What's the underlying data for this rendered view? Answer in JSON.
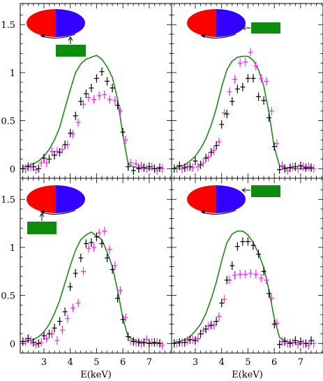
{
  "chart_data": {
    "type": "line",
    "x_axis_label": "E(keV)",
    "xlim": [
      2.1,
      7.85
    ],
    "ylim": [
      -0.1,
      1.72
    ],
    "x_ticks": [
      "3",
      "4",
      "5",
      "6",
      "7"
    ],
    "y_ticks": [
      "0",
      "0.5",
      "1",
      "1.5"
    ],
    "colors": {
      "model": "#1a8a1a",
      "black_series": "#000000",
      "magenta_series": "#ff1fff",
      "disk_red": "#ff0000",
      "disk_blue": "#3300ff",
      "block_green": "#0d8c0d"
    },
    "panels": [
      {
        "model_y": [
          0.02,
          0.03,
          0.05,
          0.08,
          0.13,
          0.2,
          0.3,
          0.43,
          0.63,
          0.82,
          1.0,
          1.09,
          1.14,
          1.16,
          1.18,
          1.14,
          1.06,
          0.95,
          0.72,
          0.35,
          0.05,
          0.02,
          0.01,
          0.01,
          0.0,
          0.0,
          0.0
        ],
        "black_y": [
          0.0,
          0.02,
          0.02,
          0.0,
          0.11,
          0.1,
          0.14,
          0.17,
          0.25,
          0.37,
          0.55,
          0.7,
          0.78,
          0.84,
          0.94,
          1.01,
          0.91,
          0.84,
          0.66,
          0.38,
          0.02,
          -0.02,
          0.0,
          0.01,
          0.02,
          0.0,
          0.01
        ],
        "magenta_y": [
          0.0,
          0.02,
          -0.01,
          0.06,
          0.06,
          0.18,
          0.18,
          0.2,
          0.25,
          0.36,
          0.48,
          0.67,
          0.74,
          0.72,
          0.76,
          0.77,
          0.72,
          0.71,
          0.6,
          0.3,
          0.06,
          0.05,
          0.03,
          0.0,
          0.02,
          -0.02,
          0.0
        ]
      },
      {
        "model_y": [
          0.01,
          0.02,
          0.04,
          0.08,
          0.13,
          0.21,
          0.31,
          0.45,
          0.63,
          0.85,
          1.03,
          1.12,
          1.16,
          1.17,
          1.17,
          1.13,
          1.03,
          0.86,
          0.58,
          0.22,
          0.03,
          0.01,
          0.01,
          0.0,
          0.0,
          0.0,
          0.0
        ],
        "black_y": [
          0.0,
          0.03,
          0.01,
          0.02,
          0.08,
          0.04,
          0.11,
          0.17,
          0.24,
          0.46,
          0.57,
          0.7,
          0.83,
          0.85,
          0.94,
          0.94,
          0.75,
          0.71,
          0.53,
          0.23,
          -0.01,
          0.0,
          0.01,
          0.02,
          0.03,
          0.01,
          0.01
        ],
        "magenta_y": [
          0.0,
          0.0,
          0.02,
          0.01,
          0.02,
          0.06,
          0.12,
          0.19,
          0.28,
          0.58,
          0.8,
          0.93,
          1.1,
          1.11,
          1.21,
          1.07,
          0.94,
          0.91,
          0.6,
          0.26,
          0.03,
          -0.02,
          0.02,
          0.0,
          0.02,
          0.02,
          0.0
        ]
      },
      {
        "model_y": [
          0.02,
          0.03,
          0.04,
          0.07,
          0.12,
          0.2,
          0.31,
          0.45,
          0.63,
          0.81,
          0.97,
          1.08,
          1.13,
          1.16,
          1.12,
          1.08,
          0.95,
          0.8,
          0.55,
          0.26,
          0.07,
          0.04,
          0.02,
          0.01,
          0.0,
          0.0,
          0.0
        ],
        "black_y": [
          0.02,
          0.05,
          0.01,
          0.0,
          0.08,
          0.1,
          0.16,
          0.23,
          0.33,
          0.59,
          0.73,
          0.89,
          1.04,
          1.05,
          1.11,
          1.04,
          0.89,
          0.77,
          0.47,
          0.25,
          0.07,
          0.02,
          0.01,
          0.01,
          0.0,
          0.01,
          0.0
        ],
        "magenta_y": [
          0.02,
          0.03,
          -0.01,
          0.01,
          0.05,
          0.1,
          0.03,
          0.14,
          0.26,
          0.37,
          0.42,
          0.75,
          0.99,
          1.0,
          1.15,
          1.17,
          0.98,
          0.81,
          0.55,
          0.27,
          0.03,
          0.01,
          0.0,
          0.04,
          0.01,
          0.01,
          -0.02
        ]
      },
      {
        "model_y": [
          0.01,
          0.02,
          0.04,
          0.07,
          0.13,
          0.2,
          0.31,
          0.46,
          0.64,
          0.86,
          1.05,
          1.14,
          1.17,
          1.17,
          1.13,
          1.05,
          0.94,
          0.79,
          0.55,
          0.26,
          0.06,
          0.03,
          0.01,
          0.01,
          0.0,
          0.0,
          0.0
        ],
        "black_y": [
          0.0,
          0.01,
          0.01,
          0.04,
          0.03,
          0.1,
          0.15,
          0.19,
          0.23,
          0.42,
          0.66,
          0.81,
          1.01,
          1.06,
          1.06,
          1.02,
          0.93,
          0.75,
          0.52,
          0.2,
          -0.01,
          0.02,
          0.0,
          0.03,
          0.02,
          0.0,
          0.03
        ],
        "magenta_y": [
          0.0,
          0.01,
          0.03,
          0.04,
          0.05,
          0.13,
          0.18,
          0.19,
          0.28,
          0.46,
          0.66,
          0.71,
          0.72,
          0.72,
          0.73,
          0.72,
          0.68,
          0.66,
          0.47,
          0.21,
          0.02,
          0.0,
          0.01,
          -0.01,
          0.0,
          -0.02,
          0.0
        ]
      }
    ],
    "x_points": [
      2.2,
      2.4,
      2.6,
      2.8,
      3.0,
      3.2,
      3.4,
      3.6,
      3.8,
      4.0,
      4.2,
      4.4,
      4.6,
      4.8,
      5.0,
      5.2,
      5.4,
      5.6,
      5.8,
      6.0,
      6.2,
      6.4,
      6.6,
      6.8,
      7.0,
      7.2,
      7.4
    ]
  }
}
